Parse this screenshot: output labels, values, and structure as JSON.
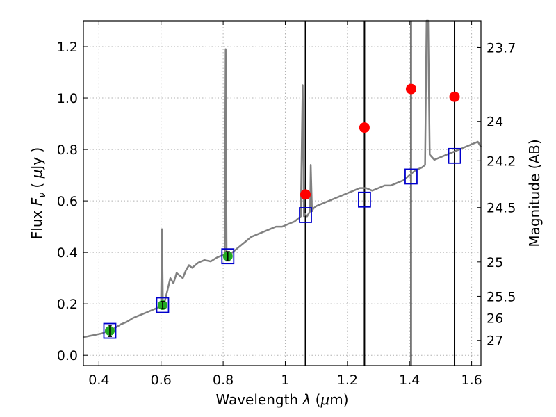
{
  "chart_data": {
    "type": "line",
    "xlabel_text": "Wavelength",
    "xlabel_symbol": "λ",
    "xlabel_unit_open": " (",
    "xlabel_unit_mu": "μ",
    "xlabel_unit_rest": "m)",
    "ylabel_text": "Flux",
    "ylabel_symbol": "F",
    "ylabel_subscript": "ν",
    "ylabel_unit_open": " ( ",
    "ylabel_unit_mu": "μ",
    "ylabel_unit_rest": "Jy )",
    "y2label": "Magnitude (AB)",
    "xlim": [
      0.35,
      1.63
    ],
    "ylim": [
      -0.04,
      1.3
    ],
    "grid": true,
    "x_ticks": [
      0.4,
      0.6,
      0.8,
      1.0,
      1.2,
      1.4,
      1.6
    ],
    "x_tick_labels": [
      "0.4",
      "0.6",
      "0.8",
      "1",
      "1.2",
      "1.4",
      "1.6"
    ],
    "y_ticks": [
      0.0,
      0.2,
      0.4,
      0.6,
      0.8,
      1.0,
      1.2
    ],
    "y_tick_labels": [
      "0.0",
      "0.2",
      "0.4",
      "0.6",
      "0.8",
      "1.0",
      "1.2"
    ],
    "y2_ticks": [
      {
        "label": "23.7",
        "flux": 1.196
      },
      {
        "label": "24",
        "flux": 0.909
      },
      {
        "label": "24.2",
        "flux": 0.756
      },
      {
        "label": "24.5",
        "flux": 0.574
      },
      {
        "label": "25",
        "flux": 0.363
      },
      {
        "label": "25.5",
        "flux": 0.229
      },
      {
        "label": "26",
        "flux": 0.145
      },
      {
        "label": "27",
        "flux": 0.058
      }
    ],
    "vertical_lines_x": [
      1.065,
      1.255,
      1.405,
      1.545
    ],
    "series": [
      {
        "kind": "spectrum",
        "color": "#808080",
        "x": [
          0.35,
          0.37,
          0.39,
          0.41,
          0.43,
          0.45,
          0.47,
          0.49,
          0.51,
          0.53,
          0.55,
          0.57,
          0.59,
          0.6,
          0.603,
          0.606,
          0.61,
          0.62,
          0.63,
          0.64,
          0.65,
          0.66,
          0.67,
          0.68,
          0.69,
          0.7,
          0.72,
          0.74,
          0.76,
          0.78,
          0.8,
          0.805,
          0.808,
          0.811,
          0.815,
          0.83,
          0.85,
          0.87,
          0.89,
          0.91,
          0.93,
          0.95,
          0.97,
          0.99,
          1.01,
          1.03,
          1.05,
          1.056,
          1.06,
          1.064,
          1.07,
          1.08,
          1.082,
          1.086,
          1.09,
          1.1,
          1.12,
          1.14,
          1.16,
          1.18,
          1.2,
          1.22,
          1.24,
          1.26,
          1.28,
          1.3,
          1.32,
          1.34,
          1.36,
          1.38,
          1.4,
          1.42,
          1.44,
          1.45,
          1.455,
          1.46,
          1.465,
          1.48,
          1.5,
          1.52,
          1.54,
          1.56,
          1.58,
          1.6,
          1.62,
          1.63
        ],
        "y": [
          0.07,
          0.075,
          0.08,
          0.085,
          0.095,
          0.105,
          0.12,
          0.13,
          0.145,
          0.155,
          0.165,
          0.175,
          0.185,
          0.19,
          0.49,
          0.19,
          0.2,
          0.25,
          0.3,
          0.28,
          0.32,
          0.31,
          0.3,
          0.33,
          0.35,
          0.34,
          0.36,
          0.37,
          0.365,
          0.38,
          0.39,
          0.39,
          1.19,
          0.4,
          0.39,
          0.4,
          0.42,
          0.44,
          0.46,
          0.47,
          0.48,
          0.49,
          0.5,
          0.5,
          0.51,
          0.52,
          0.54,
          1.05,
          0.54,
          0.55,
          0.54,
          0.56,
          0.74,
          0.56,
          0.57,
          0.58,
          0.59,
          0.6,
          0.61,
          0.62,
          0.63,
          0.64,
          0.65,
          0.65,
          0.64,
          0.65,
          0.66,
          0.66,
          0.67,
          0.68,
          0.7,
          0.72,
          0.73,
          0.74,
          1.3,
          1.3,
          0.78,
          0.76,
          0.77,
          0.78,
          0.79,
          0.8,
          0.81,
          0.82,
          0.83,
          0.81
        ]
      },
      {
        "kind": "model_photometry",
        "marker": "open-square",
        "color": "#0000cc",
        "x": [
          0.435,
          0.605,
          0.815,
          1.065,
          1.255,
          1.405,
          1.545
        ],
        "y": [
          0.095,
          0.195,
          0.385,
          0.545,
          0.605,
          0.695,
          0.775
        ]
      },
      {
        "kind": "observed_photometry",
        "marker": "circle",
        "color": "#22aa22",
        "x": [
          0.435,
          0.605,
          0.815
        ],
        "y": [
          0.095,
          0.195,
          0.385
        ],
        "err": [
          0.022,
          0.014,
          0.018
        ]
      },
      {
        "kind": "upper_limits",
        "marker": "circle",
        "color": "#ff0000",
        "x": [
          1.065,
          1.255,
          1.405,
          1.545
        ],
        "y": [
          0.625,
          0.885,
          1.035,
          1.005
        ]
      }
    ]
  }
}
